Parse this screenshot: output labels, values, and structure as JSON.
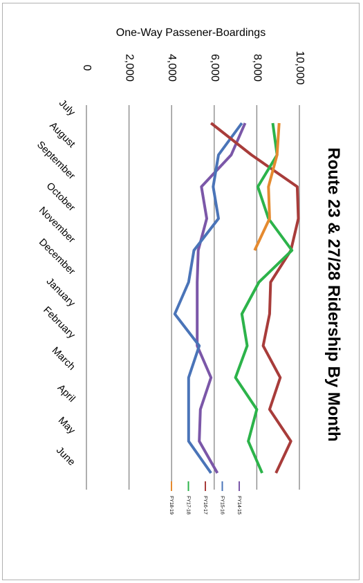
{
  "chart_data": {
    "type": "line",
    "title": "Route 23 & 27/28 Ridership By Month",
    "xlabel": "",
    "ylabel": "One-Way Passener-Boardings",
    "categories": [
      "July",
      "August",
      "September",
      "October",
      "November",
      "December",
      "January",
      "February",
      "March",
      "April",
      "May",
      "June"
    ],
    "yticks": [
      "0",
      "2,000",
      "4,000",
      "6,000",
      "8,000",
      "10,000"
    ],
    "ylim": [
      0,
      10000
    ],
    "grid": true,
    "legend_position": "bottom",
    "series": [
      {
        "name": "FY14-15",
        "color": "#7b57a8",
        "values": [
          7450,
          6800,
          5400,
          5650,
          5250,
          5200,
          5200,
          5200,
          5850,
          5350,
          5300,
          6150
        ]
      },
      {
        "name": "FY15-16",
        "color": "#4a74b8",
        "values": [
          7300,
          6200,
          5950,
          6200,
          5050,
          4800,
          4150,
          5300,
          4800,
          4800,
          4800,
          5850
        ]
      },
      {
        "name": "FY16-17",
        "color": "#a83c3a",
        "values": [
          5850,
          7750,
          9900,
          9950,
          9600,
          8650,
          8600,
          8300,
          9100,
          8600,
          9600,
          8900
        ]
      },
      {
        "name": "FY17-18",
        "color": "#2cb34a",
        "values": [
          8750,
          8950,
          8050,
          8550,
          9650,
          8100,
          7300,
          7550,
          7000,
          8000,
          7600,
          8250
        ]
      },
      {
        "name": "FY18-19",
        "color": "#e58a2f",
        "values": [
          9050,
          8950,
          8550,
          8600,
          7900,
          null,
          null,
          null,
          null,
          null,
          null,
          null
        ]
      }
    ]
  }
}
